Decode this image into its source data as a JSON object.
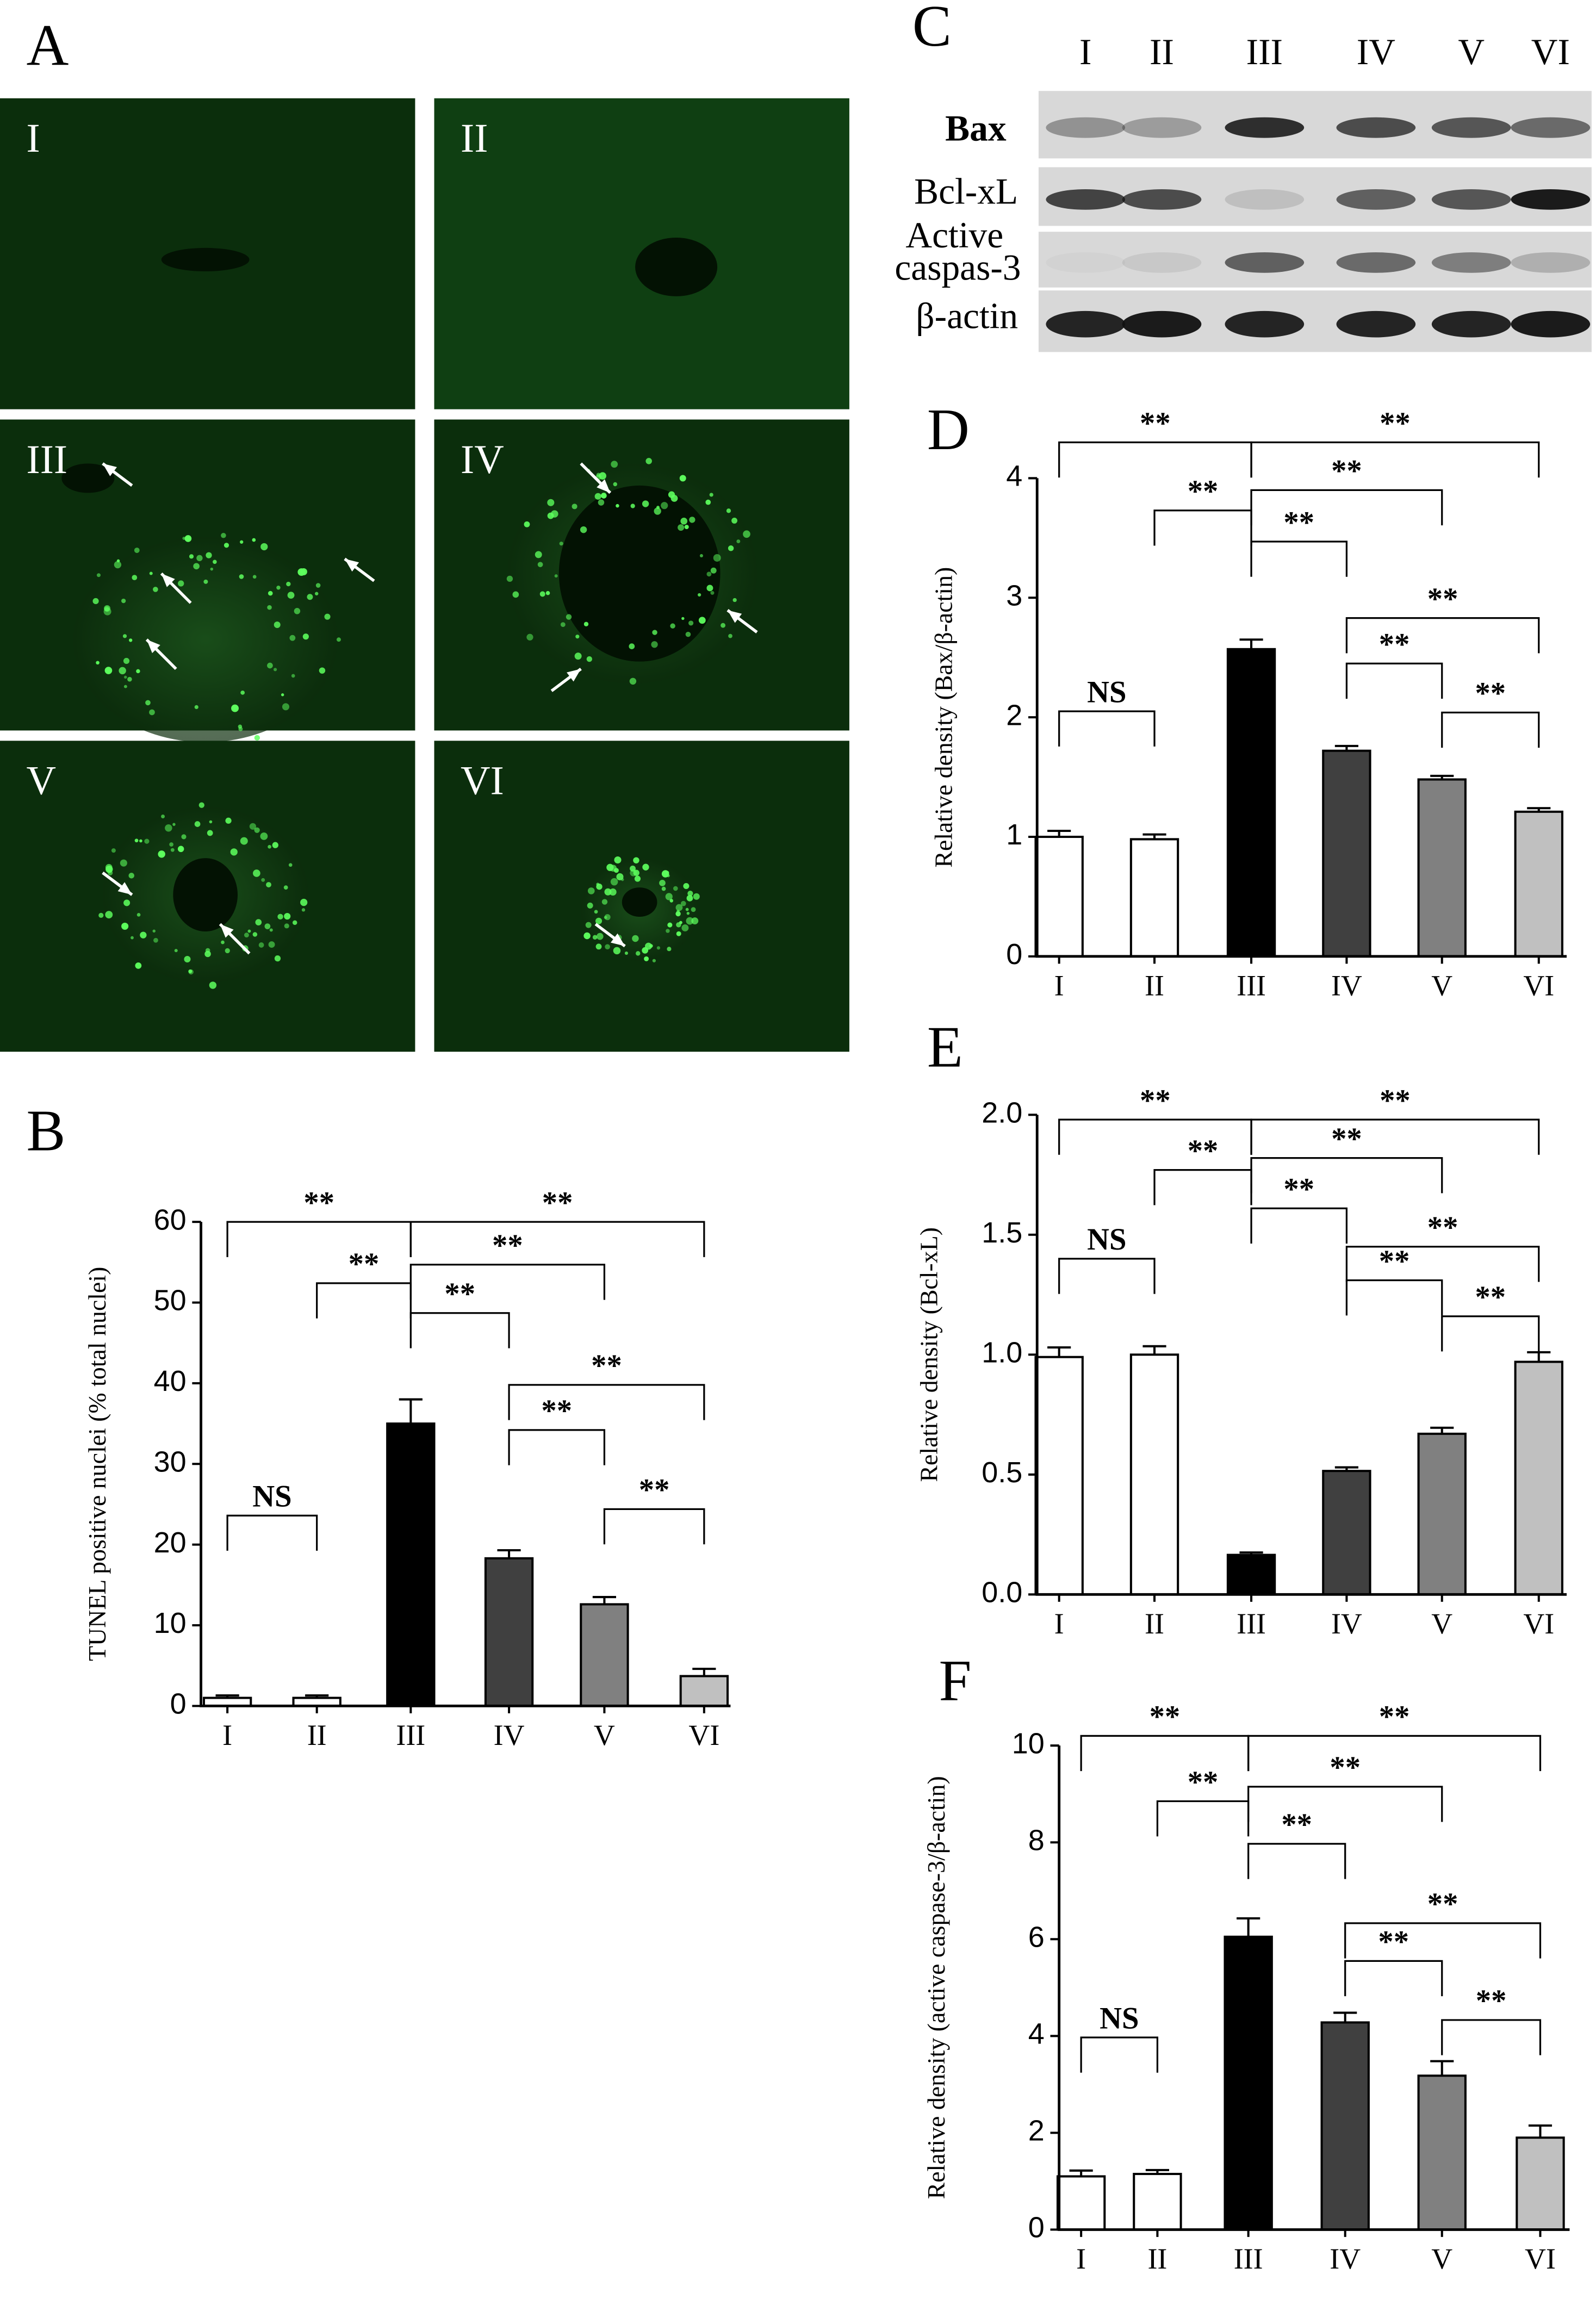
{
  "panel_a": {
    "label": "A",
    "images": [
      "I",
      "II",
      "III",
      "IV",
      "V",
      "VI"
    ]
  },
  "panel_c": {
    "label": "C",
    "lanes": [
      "I",
      "II",
      "III",
      "IV",
      "V",
      "VI"
    ],
    "rows": [
      "Bax",
      "Bcl-xL",
      "Active",
      "caspas-3",
      "β-actin"
    ]
  },
  "chart_data": [
    {
      "type": "bar",
      "label": "B",
      "ylabel": "TUNEL positive nuclei (% total nuclei)",
      "categories": [
        "I",
        "II",
        "III",
        "IV",
        "V",
        "VI"
      ],
      "values": [
        1.0,
        1.0,
        35,
        18.3,
        12.6,
        3.7
      ],
      "errors": [
        0.3,
        0.3,
        3,
        1,
        0.9,
        0.9
      ],
      "colors": [
        "#ffffff",
        "#ffffff",
        "#000000",
        "#404040",
        "#808080",
        "#c0c0c0"
      ],
      "ylim": [
        0,
        60
      ],
      "yticks": [
        0,
        10,
        20,
        30,
        40,
        50,
        60
      ],
      "annotations": [
        {
          "text": "**",
          "from": "I",
          "to": "III",
          "y": 60
        },
        {
          "text": "**",
          "from": "II",
          "to": "III",
          "y": 52.4
        },
        {
          "text": "**",
          "from": "III",
          "to": "VI",
          "y": 60
        },
        {
          "text": "**",
          "from": "III",
          "to": "V",
          "y": 54.7
        },
        {
          "text": "**",
          "from": "III",
          "to": "IV",
          "y": 48.7
        },
        {
          "text": "**",
          "from": "IV",
          "to": "VI",
          "y": 39.8
        },
        {
          "text": "**",
          "from": "IV",
          "to": "V",
          "y": 34.2
        },
        {
          "text": "**",
          "from": "V",
          "to": "VI",
          "y": 24.4
        },
        {
          "text": "NS",
          "from": "I",
          "to": "II",
          "y": 23.6
        }
      ]
    },
    {
      "type": "bar",
      "label": "D",
      "ylabel": "Relative density (Bax/β-actin)",
      "categories": [
        "I",
        "II",
        "III",
        "IV",
        "V",
        "VI"
      ],
      "values": [
        1.0,
        0.98,
        2.57,
        1.72,
        1.48,
        1.21
      ],
      "errors": [
        0.05,
        0.04,
        0.08,
        0.04,
        0.03,
        0.03
      ],
      "colors": [
        "#ffffff",
        "#ffffff",
        "#000000",
        "#404040",
        "#808080",
        "#c0c0c0"
      ],
      "ylim": [
        0,
        4
      ],
      "yticks": [
        0,
        1,
        2,
        3,
        4
      ],
      "annotations": [
        {
          "text": "**",
          "from": "I",
          "to": "III",
          "y": 4.3
        },
        {
          "text": "**",
          "from": "II",
          "to": "III",
          "y": 3.73
        },
        {
          "text": "**",
          "from": "III",
          "to": "VI",
          "y": 4.3
        },
        {
          "text": "**",
          "from": "III",
          "to": "V",
          "y": 3.9
        },
        {
          "text": "**",
          "from": "III",
          "to": "IV",
          "y": 3.47
        },
        {
          "text": "**",
          "from": "IV",
          "to": "VI",
          "y": 2.83
        },
        {
          "text": "**",
          "from": "IV",
          "to": "V",
          "y": 2.45
        },
        {
          "text": "**",
          "from": "V",
          "to": "VI",
          "y": 2.04
        },
        {
          "text": "NS",
          "from": "I",
          "to": "II",
          "y": 2.05
        }
      ]
    },
    {
      "type": "bar",
      "label": "E",
      "ylabel": "Relative density (Bcl-xL)",
      "categories": [
        "I",
        "II",
        "III",
        "IV",
        "V",
        "VI"
      ],
      "values": [
        0.99,
        1.0,
        0.165,
        0.515,
        0.67,
        0.97
      ],
      "errors": [
        0.04,
        0.035,
        0.01,
        0.015,
        0.025,
        0.04
      ],
      "colors": [
        "#ffffff",
        "#ffffff",
        "#000000",
        "#404040",
        "#808080",
        "#c0c0c0"
      ],
      "ylim": [
        0,
        2
      ],
      "yticks": [
        {
          "value": 0,
          "label": "0.0"
        },
        0.5,
        {
          "value": 1,
          "label": "1.0"
        },
        1.5,
        {
          "value": 2,
          "label": "2.0"
        }
      ],
      "annotations": [
        {
          "text": "**",
          "from": "I",
          "to": "III",
          "y": 1.98
        },
        {
          "text": "**",
          "from": "II",
          "to": "III",
          "y": 1.77
        },
        {
          "text": "**",
          "from": "III",
          "to": "VI",
          "y": 1.98
        },
        {
          "text": "**",
          "from": "III",
          "to": "V",
          "y": 1.82
        },
        {
          "text": "**",
          "from": "III",
          "to": "IV",
          "y": 1.61
        },
        {
          "text": "**",
          "from": "IV",
          "to": "VI",
          "y": 1.45
        },
        {
          "text": "**",
          "from": "IV",
          "to": "V",
          "y": 1.31
        },
        {
          "text": "**",
          "from": "V",
          "to": "VI",
          "y": 1.16
        },
        {
          "text": "NS",
          "from": "I",
          "to": "II",
          "y": 1.4
        }
      ]
    },
    {
      "type": "bar",
      "label": "F",
      "ylabel": "Relative density (active caspase-3/β-actin)",
      "categories": [
        "I",
        "II",
        "III",
        "IV",
        "V",
        "VI"
      ],
      "values": [
        1.1,
        1.15,
        6.05,
        4.28,
        3.18,
        1.9
      ],
      "errors": [
        0.12,
        0.08,
        0.38,
        0.2,
        0.3,
        0.25
      ],
      "colors": [
        "#ffffff",
        "#ffffff",
        "#000000",
        "#404040",
        "#808080",
        "#c0c0c0"
      ],
      "ylim": [
        0,
        10
      ],
      "yticks": [
        0,
        2,
        4,
        6,
        8,
        10
      ],
      "annotations": [
        {
          "text": "**",
          "from": "I",
          "to": "III",
          "y": 10.2
        },
        {
          "text": "**",
          "from": "II",
          "to": "III",
          "y": 8.85
        },
        {
          "text": "**",
          "from": "III",
          "to": "VI",
          "y": 10.2
        },
        {
          "text": "**",
          "from": "III",
          "to": "V",
          "y": 9.15
        },
        {
          "text": "**",
          "from": "III",
          "to": "IV",
          "y": 7.97
        },
        {
          "text": "**",
          "from": "IV",
          "to": "VI",
          "y": 6.33
        },
        {
          "text": "**",
          "from": "IV",
          "to": "V",
          "y": 5.55
        },
        {
          "text": "**",
          "from": "V",
          "to": "VI",
          "y": 4.33
        },
        {
          "text": "NS",
          "from": "I",
          "to": "II",
          "y": 3.97
        }
      ]
    }
  ]
}
